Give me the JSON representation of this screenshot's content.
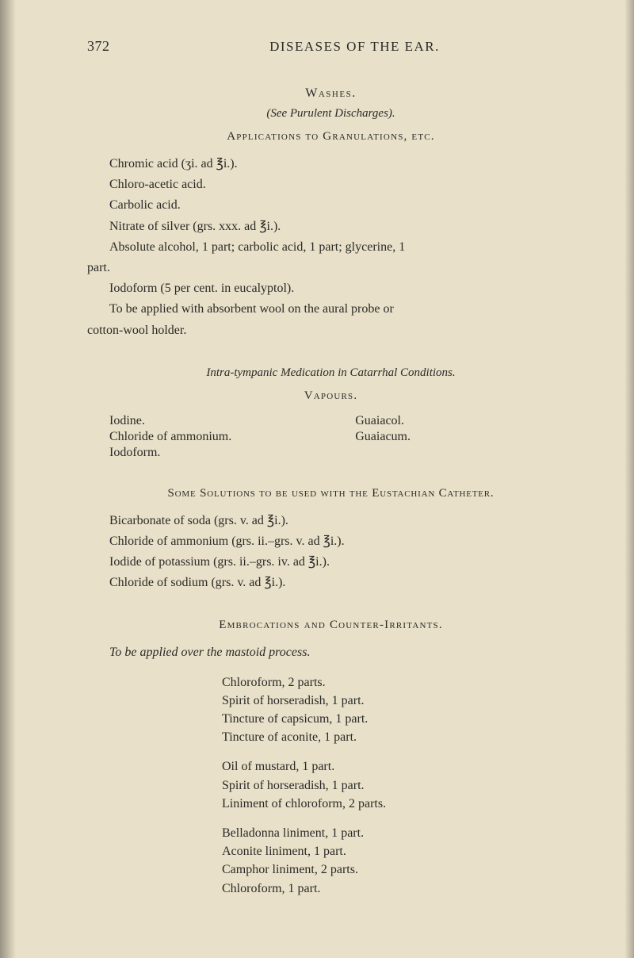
{
  "colors": {
    "page_bg": "#e8e0c8",
    "text": "#2a2a28"
  },
  "typography": {
    "body_font": "Times New Roman",
    "body_size_pt": 12,
    "heading_smallcaps": true
  },
  "header": {
    "page_number": "372",
    "running_head": "DISEASES OF THE EAR."
  },
  "washes": {
    "heading": "Washes.",
    "subtitle": "(See Purulent Discharges).",
    "applications_heading": "Applications to Granulations, etc.",
    "lines": [
      "Chromic acid (ʒi. ad ℥i.).",
      "Chloro-acetic acid.",
      "Carbolic acid.",
      "Nitrate of silver (grs. xxx. ad ℥i.).",
      "Absolute alcohol, 1 part; carbolic acid, 1 part; glycerine, 1",
      "part.",
      "Iodoform (5 per cent. in eucalyptol).",
      "To be applied with absorbent wool on the aural probe or",
      "cotton-wool holder."
    ]
  },
  "intratympanic": {
    "heading": "Intra-tympanic Medication in Catarrhal Conditions.",
    "subheading": "Vapours.",
    "rows": [
      {
        "left": "Iodine.",
        "right": "Guaiacol."
      },
      {
        "left": "Chloride of ammonium.",
        "right": "Guaiacum."
      },
      {
        "left": "Iodoform.",
        "right": ""
      }
    ]
  },
  "eustachian": {
    "heading": "Some Solutions to be used with the Eustachian Catheter.",
    "lines": [
      "Bicarbonate of soda (grs. v. ad ℥i.).",
      "Chloride of ammonium (grs. ii.–grs. v. ad ℥i.).",
      "Iodide of potassium (grs. ii.–grs. iv. ad ℥i.).",
      "Chloride of sodium (grs. v. ad ℥i.)."
    ]
  },
  "embrocations": {
    "heading": "Embrocations and Counter-Irritants.",
    "subtitle": "To be applied over the mastoid process.",
    "recipes": [
      [
        "Chloroform, 2 parts.",
        "Spirit of horseradish, 1 part.",
        "Tincture of capsicum, 1 part.",
        "Tincture of aconite, 1 part."
      ],
      [
        "Oil of mustard, 1 part.",
        "Spirit of horseradish, 1 part.",
        "Liniment of chloroform, 2 parts."
      ],
      [
        "Belladonna liniment, 1 part.",
        "Aconite liniment, 1 part.",
        "Camphor liniment, 2 parts.",
        "Chloroform, 1 part."
      ]
    ]
  }
}
